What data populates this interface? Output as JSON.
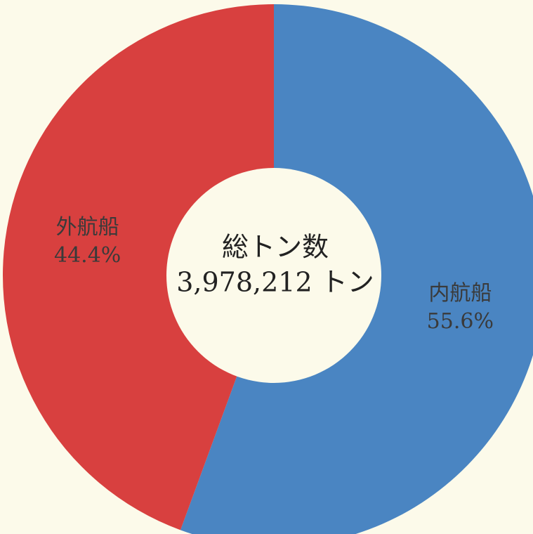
{
  "chart_data": {
    "type": "donut",
    "categories": [
      "内航船",
      "外航船"
    ],
    "values": [
      55.6,
      44.4
    ],
    "value_labels": [
      "55.6%",
      "44.4%"
    ],
    "colors": [
      "#4a85c2",
      "#d8403f"
    ],
    "center_title": "総トン数",
    "center_label": "3,978,212 トン"
  }
}
